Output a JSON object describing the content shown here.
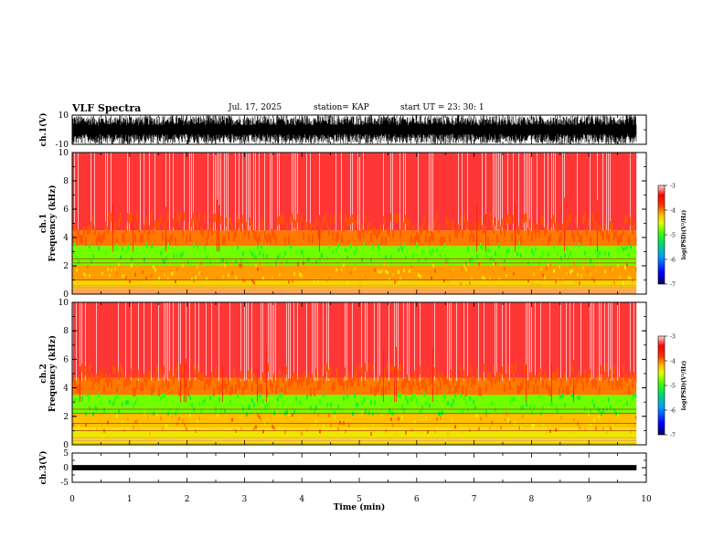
{
  "header": {
    "title": "VLF Spectra",
    "date": "Jul. 17, 2025",
    "station": "station= KAP",
    "start": "start  UT =  23: 30: 1"
  },
  "chart_data": [
    {
      "type": "line",
      "name": "ch1-waveform",
      "ylabel": "ch.1(V)",
      "ylim": [
        -10,
        10
      ],
      "yticks": [
        -10,
        10
      ],
      "xlim": [
        0,
        10
      ],
      "data_extent_x": [
        0,
        9.83
      ],
      "description_values": {
        "min": -10,
        "max": 10
      }
    },
    {
      "type": "heatmap",
      "name": "ch1-spectrogram",
      "ylabel": "ch.1\nFrequency (kHz)",
      "ylabel_line1": "ch.1",
      "ylabel_line2": "Frequency (kHz)",
      "ylim": [
        0,
        10
      ],
      "yticks": [
        0,
        2,
        4,
        6,
        8,
        10
      ],
      "xlim": [
        0,
        10
      ],
      "data_extent_x": [
        0,
        9.83
      ],
      "bands": [
        {
          "from": 0,
          "to": 1,
          "level": -4.3
        },
        {
          "from": 1,
          "to": 2,
          "level": -4.1
        },
        {
          "from": 2,
          "to": 3.4,
          "level": -4.8
        },
        {
          "from": 3.4,
          "to": 4.5,
          "level": -4.0
        },
        {
          "from": 4.5,
          "to": 10,
          "level": -3.3
        }
      ],
      "lines_khz": [
        0.1,
        0.2,
        0.3,
        0.4,
        0.5,
        0.6,
        1.0,
        2.2,
        2.5
      ]
    },
    {
      "type": "heatmap",
      "name": "ch2-spectrogram",
      "ylabel_line1": "ch.2",
      "ylabel_line2": "Frequency (kHz)",
      "ylim": [
        0,
        10
      ],
      "yticks": [
        0,
        2,
        4,
        6,
        8,
        10
      ],
      "xlim": [
        0,
        10
      ],
      "data_extent_x": [
        0,
        9.83
      ],
      "bands": [
        {
          "from": 0,
          "to": 1.2,
          "level": -4.4
        },
        {
          "from": 1.2,
          "to": 2.2,
          "level": -4.2
        },
        {
          "from": 2.2,
          "to": 3.5,
          "level": -4.8
        },
        {
          "from": 3.5,
          "to": 4.7,
          "level": -4.0
        },
        {
          "from": 4.7,
          "to": 10,
          "level": -3.3
        }
      ],
      "lines_khz": [
        0.1,
        0.3,
        0.5,
        1.0,
        1.5,
        2.2,
        2.5
      ]
    },
    {
      "type": "line",
      "name": "ch3-waveform",
      "ylabel": "ch.3(V)",
      "ylim": [
        -5,
        5
      ],
      "yticks": [
        -5,
        0,
        5
      ],
      "xlim": [
        0,
        10
      ],
      "data_extent_x": [
        0,
        9.83
      ],
      "level": 0,
      "amplitude": 0.9
    }
  ],
  "xaxis": {
    "label": "Time (min)",
    "ticks": [
      "0",
      "1",
      "2",
      "3",
      "4",
      "5",
      "6",
      "7",
      "8",
      "9",
      "10"
    ],
    "values": [
      0,
      1,
      2,
      3,
      4,
      5,
      6,
      7,
      8,
      9,
      10
    ],
    "xlim": [
      0,
      10
    ]
  },
  "colorbars": [
    {
      "name": "ch1-colorbar",
      "label": "log(PSD)(V²/Hz)",
      "ticks": [
        "-3",
        "-4",
        "-5",
        "-6",
        "-7"
      ],
      "values": [
        -3,
        -4,
        -5,
        -6,
        -7
      ],
      "range": [
        -7,
        -3
      ]
    },
    {
      "name": "ch2-colorbar",
      "label": "log(PSD)(V²/Hz)",
      "ticks": [
        "-3",
        "-4",
        "-5",
        "-6",
        "-7"
      ],
      "values": [
        -3,
        -4,
        -5,
        -6,
        -7
      ],
      "range": [
        -7,
        -3
      ]
    }
  ],
  "colors": {
    "colormap": [
      "#000060",
      "#0000ff",
      "#00a0ff",
      "#00e060",
      "#40ff00",
      "#e0ff00",
      "#ffc000",
      "#ff3000",
      "#ff0000",
      "#ffd8d8"
    ],
    "trace": "#000000"
  }
}
